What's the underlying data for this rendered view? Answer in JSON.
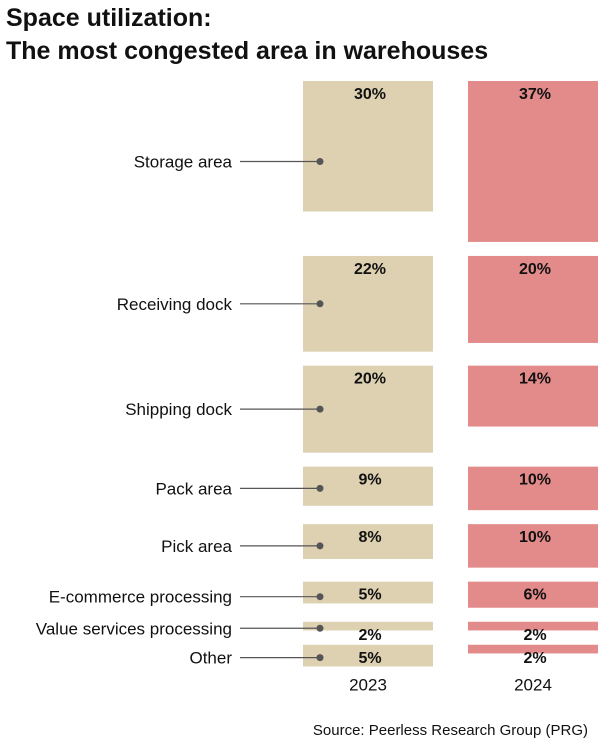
{
  "chart_data": {
    "type": "bar",
    "title_line1": "Space utilization:",
    "title_line2": "The most congested area in warehouses",
    "categories": [
      "Storage area",
      "Receiving dock",
      "Shipping dock",
      "Pack area",
      "Pick area",
      "E-commerce processing",
      "Value services processing",
      "Other"
    ],
    "series": [
      {
        "name": "2023",
        "values": [
          30,
          22,
          20,
          9,
          8,
          5,
          2,
          5
        ],
        "color": "#ddd1b2"
      },
      {
        "name": "2024",
        "values": [
          37,
          20,
          14,
          10,
          10,
          6,
          2,
          2
        ],
        "color": "#e38a8a"
      }
    ],
    "value_suffix": "%",
    "orientation": "columns of proportional bars",
    "source": "Source: Peerless Research Group (PRG)"
  }
}
